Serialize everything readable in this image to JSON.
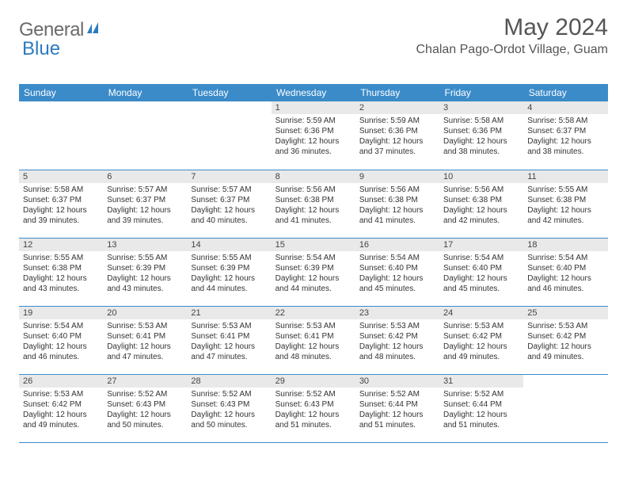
{
  "brand": {
    "part1": "General",
    "part2": "Blue"
  },
  "title": "May 2024",
  "location": "Chalan Pago-Ordot Village, Guam",
  "colors": {
    "header_bg": "#3b8bc9",
    "header_text": "#ffffff",
    "daynum_bg": "#e9e9e9",
    "border": "#3b8bc9",
    "brand_gray": "#6b6b6b",
    "brand_blue": "#2d7bc0"
  },
  "weekdays": [
    "Sunday",
    "Monday",
    "Tuesday",
    "Wednesday",
    "Thursday",
    "Friday",
    "Saturday"
  ],
  "weeks": [
    [
      {
        "empty": true
      },
      {
        "empty": true
      },
      {
        "empty": true
      },
      {
        "day": "1",
        "sunrise": "Sunrise: 5:59 AM",
        "sunset": "Sunset: 6:36 PM",
        "daylight1": "Daylight: 12 hours",
        "daylight2": "and 36 minutes."
      },
      {
        "day": "2",
        "sunrise": "Sunrise: 5:59 AM",
        "sunset": "Sunset: 6:36 PM",
        "daylight1": "Daylight: 12 hours",
        "daylight2": "and 37 minutes."
      },
      {
        "day": "3",
        "sunrise": "Sunrise: 5:58 AM",
        "sunset": "Sunset: 6:36 PM",
        "daylight1": "Daylight: 12 hours",
        "daylight2": "and 38 minutes."
      },
      {
        "day": "4",
        "sunrise": "Sunrise: 5:58 AM",
        "sunset": "Sunset: 6:37 PM",
        "daylight1": "Daylight: 12 hours",
        "daylight2": "and 38 minutes."
      }
    ],
    [
      {
        "day": "5",
        "sunrise": "Sunrise: 5:58 AM",
        "sunset": "Sunset: 6:37 PM",
        "daylight1": "Daylight: 12 hours",
        "daylight2": "and 39 minutes."
      },
      {
        "day": "6",
        "sunrise": "Sunrise: 5:57 AM",
        "sunset": "Sunset: 6:37 PM",
        "daylight1": "Daylight: 12 hours",
        "daylight2": "and 39 minutes."
      },
      {
        "day": "7",
        "sunrise": "Sunrise: 5:57 AM",
        "sunset": "Sunset: 6:37 PM",
        "daylight1": "Daylight: 12 hours",
        "daylight2": "and 40 minutes."
      },
      {
        "day": "8",
        "sunrise": "Sunrise: 5:56 AM",
        "sunset": "Sunset: 6:38 PM",
        "daylight1": "Daylight: 12 hours",
        "daylight2": "and 41 minutes."
      },
      {
        "day": "9",
        "sunrise": "Sunrise: 5:56 AM",
        "sunset": "Sunset: 6:38 PM",
        "daylight1": "Daylight: 12 hours",
        "daylight2": "and 41 minutes."
      },
      {
        "day": "10",
        "sunrise": "Sunrise: 5:56 AM",
        "sunset": "Sunset: 6:38 PM",
        "daylight1": "Daylight: 12 hours",
        "daylight2": "and 42 minutes."
      },
      {
        "day": "11",
        "sunrise": "Sunrise: 5:55 AM",
        "sunset": "Sunset: 6:38 PM",
        "daylight1": "Daylight: 12 hours",
        "daylight2": "and 42 minutes."
      }
    ],
    [
      {
        "day": "12",
        "sunrise": "Sunrise: 5:55 AM",
        "sunset": "Sunset: 6:38 PM",
        "daylight1": "Daylight: 12 hours",
        "daylight2": "and 43 minutes."
      },
      {
        "day": "13",
        "sunrise": "Sunrise: 5:55 AM",
        "sunset": "Sunset: 6:39 PM",
        "daylight1": "Daylight: 12 hours",
        "daylight2": "and 43 minutes."
      },
      {
        "day": "14",
        "sunrise": "Sunrise: 5:55 AM",
        "sunset": "Sunset: 6:39 PM",
        "daylight1": "Daylight: 12 hours",
        "daylight2": "and 44 minutes."
      },
      {
        "day": "15",
        "sunrise": "Sunrise: 5:54 AM",
        "sunset": "Sunset: 6:39 PM",
        "daylight1": "Daylight: 12 hours",
        "daylight2": "and 44 minutes."
      },
      {
        "day": "16",
        "sunrise": "Sunrise: 5:54 AM",
        "sunset": "Sunset: 6:40 PM",
        "daylight1": "Daylight: 12 hours",
        "daylight2": "and 45 minutes."
      },
      {
        "day": "17",
        "sunrise": "Sunrise: 5:54 AM",
        "sunset": "Sunset: 6:40 PM",
        "daylight1": "Daylight: 12 hours",
        "daylight2": "and 45 minutes."
      },
      {
        "day": "18",
        "sunrise": "Sunrise: 5:54 AM",
        "sunset": "Sunset: 6:40 PM",
        "daylight1": "Daylight: 12 hours",
        "daylight2": "and 46 minutes."
      }
    ],
    [
      {
        "day": "19",
        "sunrise": "Sunrise: 5:54 AM",
        "sunset": "Sunset: 6:40 PM",
        "daylight1": "Daylight: 12 hours",
        "daylight2": "and 46 minutes."
      },
      {
        "day": "20",
        "sunrise": "Sunrise: 5:53 AM",
        "sunset": "Sunset: 6:41 PM",
        "daylight1": "Daylight: 12 hours",
        "daylight2": "and 47 minutes."
      },
      {
        "day": "21",
        "sunrise": "Sunrise: 5:53 AM",
        "sunset": "Sunset: 6:41 PM",
        "daylight1": "Daylight: 12 hours",
        "daylight2": "and 47 minutes."
      },
      {
        "day": "22",
        "sunrise": "Sunrise: 5:53 AM",
        "sunset": "Sunset: 6:41 PM",
        "daylight1": "Daylight: 12 hours",
        "daylight2": "and 48 minutes."
      },
      {
        "day": "23",
        "sunrise": "Sunrise: 5:53 AM",
        "sunset": "Sunset: 6:42 PM",
        "daylight1": "Daylight: 12 hours",
        "daylight2": "and 48 minutes."
      },
      {
        "day": "24",
        "sunrise": "Sunrise: 5:53 AM",
        "sunset": "Sunset: 6:42 PM",
        "daylight1": "Daylight: 12 hours",
        "daylight2": "and 49 minutes."
      },
      {
        "day": "25",
        "sunrise": "Sunrise: 5:53 AM",
        "sunset": "Sunset: 6:42 PM",
        "daylight1": "Daylight: 12 hours",
        "daylight2": "and 49 minutes."
      }
    ],
    [
      {
        "day": "26",
        "sunrise": "Sunrise: 5:53 AM",
        "sunset": "Sunset: 6:42 PM",
        "daylight1": "Daylight: 12 hours",
        "daylight2": "and 49 minutes."
      },
      {
        "day": "27",
        "sunrise": "Sunrise: 5:52 AM",
        "sunset": "Sunset: 6:43 PM",
        "daylight1": "Daylight: 12 hours",
        "daylight2": "and 50 minutes."
      },
      {
        "day": "28",
        "sunrise": "Sunrise: 5:52 AM",
        "sunset": "Sunset: 6:43 PM",
        "daylight1": "Daylight: 12 hours",
        "daylight2": "and 50 minutes."
      },
      {
        "day": "29",
        "sunrise": "Sunrise: 5:52 AM",
        "sunset": "Sunset: 6:43 PM",
        "daylight1": "Daylight: 12 hours",
        "daylight2": "and 51 minutes."
      },
      {
        "day": "30",
        "sunrise": "Sunrise: 5:52 AM",
        "sunset": "Sunset: 6:44 PM",
        "daylight1": "Daylight: 12 hours",
        "daylight2": "and 51 minutes."
      },
      {
        "day": "31",
        "sunrise": "Sunrise: 5:52 AM",
        "sunset": "Sunset: 6:44 PM",
        "daylight1": "Daylight: 12 hours",
        "daylight2": "and 51 minutes."
      },
      {
        "empty": true
      }
    ]
  ]
}
